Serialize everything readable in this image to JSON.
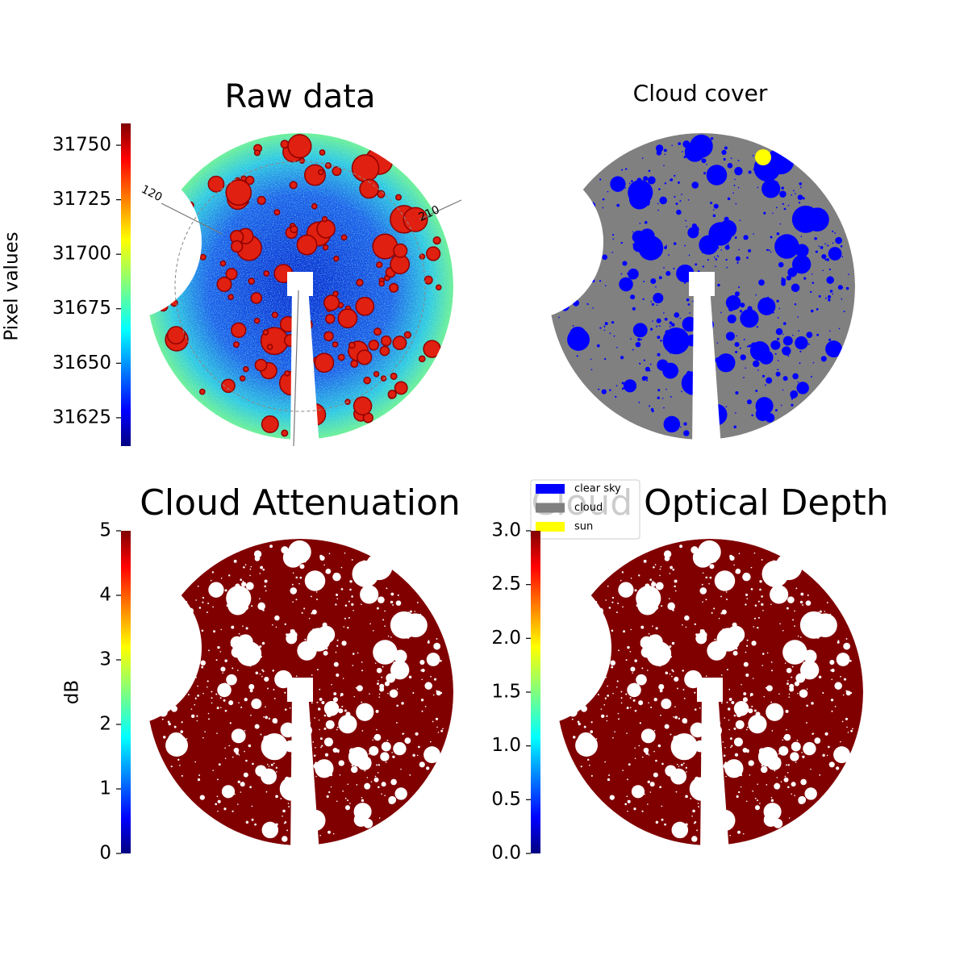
{
  "chart_data": [
    {
      "type": "image",
      "title": "Raw data",
      "annotations": [
        "120",
        "210"
      ],
      "colorbar": {
        "label": "Pixel values",
        "lim": [
          31612,
          31760
        ],
        "ticks": [
          31625,
          31650,
          31675,
          31700,
          31725,
          31750
        ]
      }
    },
    {
      "type": "classes",
      "title": "Cloud cover",
      "legend": [
        {
          "name": "clear sky",
          "color": "#0000ff"
        },
        {
          "name": "cloud",
          "color": "#808080"
        },
        {
          "name": "sun",
          "color": "#ffff00"
        }
      ]
    },
    {
      "type": "image",
      "title": "Cloud Attenuation",
      "colorbar": {
        "label": "dB",
        "lim": [
          0,
          5
        ],
        "ticks": [
          0,
          1,
          2,
          3,
          4,
          5
        ]
      }
    },
    {
      "type": "image",
      "title": "Cloud Optical Depth",
      "colorbar": {
        "lim": [
          0,
          3
        ],
        "ticks": [
          {
            "value": 0,
            "label": "0.0"
          },
          {
            "value": 0.5,
            "label": "0.5"
          },
          {
            "value": 1,
            "label": "1.0"
          },
          {
            "value": 1.5,
            "label": "1.5"
          },
          {
            "value": 2,
            "label": "2.0"
          },
          {
            "value": 2.5,
            "label": "2.5"
          },
          {
            "value": 3,
            "label": "3.0"
          }
        ]
      }
    }
  ]
}
